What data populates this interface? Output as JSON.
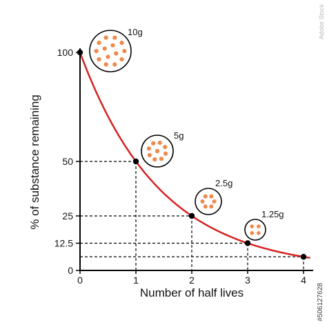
{
  "chart_data": {
    "type": "line",
    "xlabel": "Number of half lives",
    "ylabel": "% of  substance remaining",
    "xlim": [
      0,
      4
    ],
    "ylim": [
      0,
      100
    ],
    "x_ticks": [
      "0",
      "1",
      "2",
      "3",
      "4"
    ],
    "y_ticks": [
      "0",
      "12.5",
      "25",
      "50",
      "100"
    ],
    "series": [
      {
        "x": [
          0,
          1,
          2,
          3,
          4
        ],
        "values": [
          100,
          50,
          25,
          12.5,
          6.25
        ]
      }
    ],
    "annotations": [
      {
        "label": "10g",
        "x": 0,
        "y": 100
      },
      {
        "label": "5g",
        "x": 1,
        "y": 50
      },
      {
        "label": "2.5g",
        "x": 2,
        "y": 25
      },
      {
        "label": "1.25g",
        "x": 3,
        "y": 12.5
      }
    ],
    "line_color": "#d62020",
    "particle_color": "#f0884a",
    "grid": false,
    "legend": "none"
  },
  "stock_mark": "Adobe Stock",
  "stock_id": "#506127628"
}
